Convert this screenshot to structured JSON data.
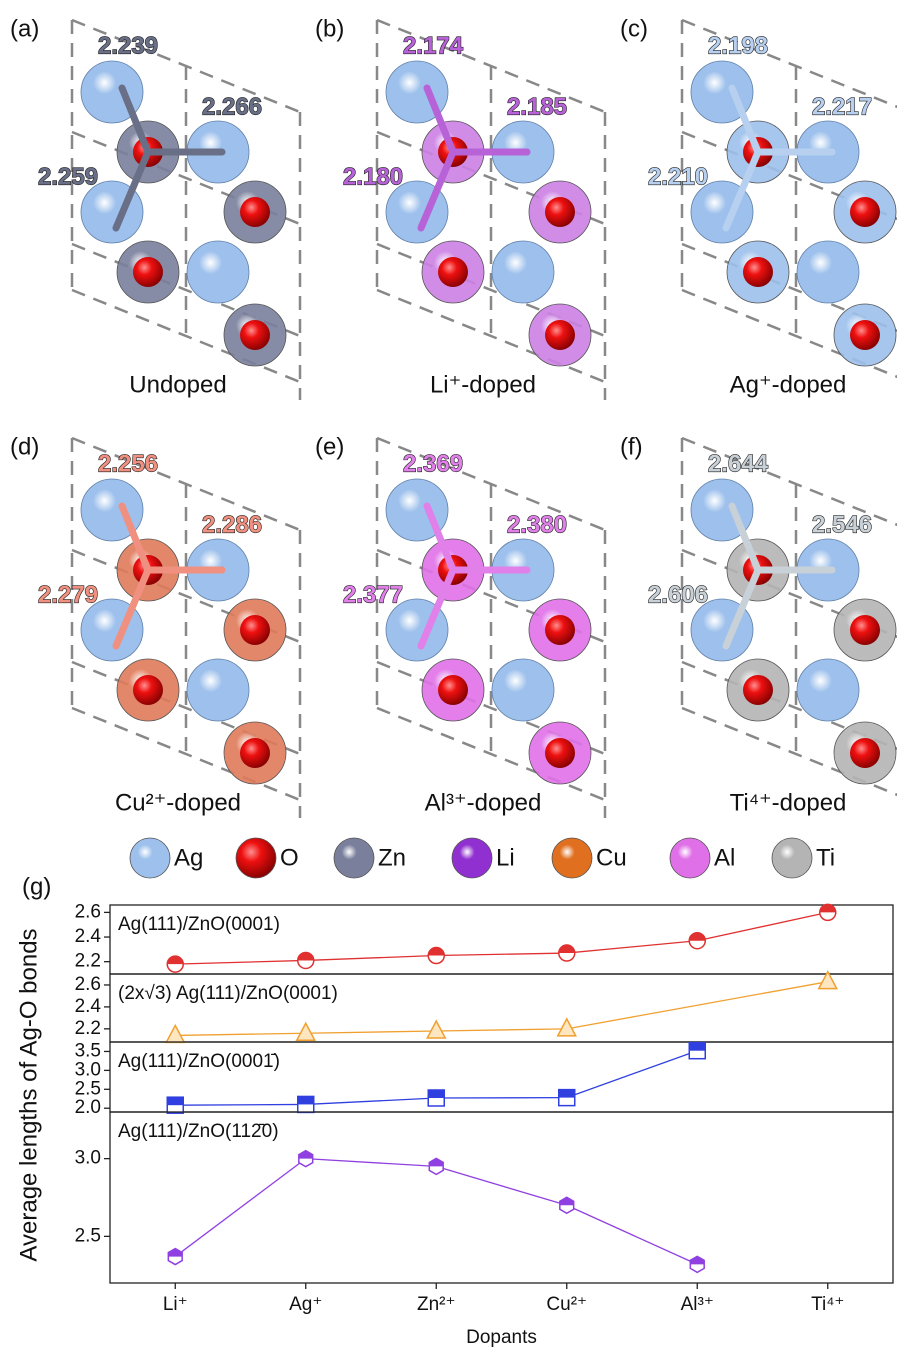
{
  "panels": [
    {
      "label": "(a)",
      "caption": "Undoped",
      "bonds": [
        "2.239",
        "2.266",
        "2.259"
      ],
      "dopant_color": "#7a7f9c",
      "bond_color": "#6a6f88"
    },
    {
      "label": "(b)",
      "caption": "Li⁺-doped",
      "bonds": [
        "2.174",
        "2.185",
        "2.180"
      ],
      "dopant_color": "#cc80e4",
      "bond_color": "#b862d8"
    },
    {
      "label": "(c)",
      "caption": "Ag⁺-doped",
      "bonds": [
        "2.198",
        "2.217",
        "2.210"
      ],
      "dopant_color": "#9dc0ec",
      "bond_color": "#b8d0f0"
    },
    {
      "label": "(d)",
      "caption": "Cu²⁺-doped",
      "bonds": [
        "2.256",
        "2.286",
        "2.279"
      ],
      "dopant_color": "#e07a5a",
      "bond_color": "#f09080"
    },
    {
      "label": "(e)",
      "caption": "Al³⁺-doped",
      "bonds": [
        "2.369",
        "2.380",
        "2.377"
      ],
      "dopant_color": "#e070e8",
      "bond_color": "#e080e8"
    },
    {
      "label": "(f)",
      "caption": "Ti⁴⁺-doped",
      "bonds": [
        "2.644",
        "2.546",
        "2.606"
      ],
      "dopant_color": "#b4b4b4",
      "bond_color": "#c8d0d8"
    }
  ],
  "legend": [
    {
      "name": "Ag",
      "color": "#9dc0ec"
    },
    {
      "name": "O",
      "color": "#e01010"
    },
    {
      "name": "Zn",
      "color": "#7a7f9c"
    },
    {
      "name": "Li",
      "color": "#9030d0"
    },
    {
      "name": "Cu",
      "color": "#e07020"
    },
    {
      "name": "Al",
      "color": "#e070e8"
    },
    {
      "name": "Ti",
      "color": "#b4b4b4"
    }
  ],
  "panel_g": {
    "label": "(g)",
    "ylabel": "Average lengths of Ag-O bonds"
  },
  "chart_data": [
    {
      "type": "line",
      "title": "Ag(111)/ZnO(0001)",
      "color": "#e03030",
      "marker": "circle",
      "values": [
        2.18,
        2.21,
        2.25,
        2.27,
        2.37,
        2.6
      ],
      "ylim": [
        2.1,
        2.66
      ],
      "yticks": [
        2.2,
        2.4,
        2.6
      ]
    },
    {
      "type": "line",
      "title": "(2x√3) Ag(111)/ZnO(0001)",
      "color": "#f0a030",
      "marker": "triangle",
      "values": [
        2.14,
        2.16,
        2.18,
        2.2,
        null,
        2.63
      ],
      "ylim": [
        2.08,
        2.7
      ],
      "yticks": [
        2.2,
        2.4,
        2.6
      ]
    },
    {
      "type": "line",
      "title": "Ag(111)/ZnO(0001̄)",
      "color": "#3040e0",
      "marker": "square",
      "values": [
        2.08,
        2.1,
        2.27,
        2.28,
        3.52,
        null
      ],
      "ylim": [
        1.9,
        3.75
      ],
      "yticks": [
        {
          "value": 2,
          "label": "2.0"
        },
        2.5,
        {
          "value": 3,
          "label": "3.0"
        },
        3.5
      ]
    },
    {
      "type": "line",
      "title": "Ag(111)/ZnO(112̄0)",
      "color": "#9040e0",
      "marker": "hexagon",
      "values": [
        2.37,
        3.0,
        2.95,
        2.7,
        2.32,
        null
      ],
      "ylim": [
        2.2,
        3.3
      ],
      "yticks": [
        2.5,
        {
          "value": 3,
          "label": "3.0"
        }
      ],
      "categories": [
        "Li⁺",
        "Ag⁺",
        "Zn²⁺",
        "Cu²⁺",
        "Al³⁺",
        "Ti⁴⁺"
      ],
      "xlabel": "Dopants"
    }
  ]
}
